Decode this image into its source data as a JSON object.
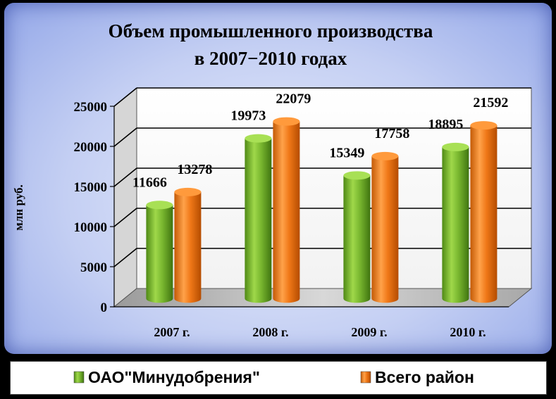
{
  "chart_data": {
    "type": "bar",
    "title_line1": "Объем промышленного производства",
    "title_line2": "в 2007−2010 годах",
    "ylabel": "млн руб.",
    "categories": [
      "2007 г.",
      "2008 г.",
      "2009 г.",
      "2010 г."
    ],
    "yticks": [
      "0",
      "5000",
      "10000",
      "15000",
      "20000",
      "25000"
    ],
    "ylim": [
      0,
      25000
    ],
    "grid": true,
    "legend_position": "bottom",
    "series": [
      {
        "name": "ОАО\"Минудобрения\"",
        "values": [
          11666,
          19973,
          15349,
          18895
        ],
        "color": "#7ab830"
      },
      {
        "name": "Всего район",
        "values": [
          13278,
          22079,
          17758,
          21592
        ],
        "color": "#f07818"
      }
    ],
    "data_labels": [
      [
        "11666",
        "19973",
        "15349",
        "18895"
      ],
      [
        "13278",
        "22079",
        "17758",
        "21592"
      ]
    ]
  }
}
